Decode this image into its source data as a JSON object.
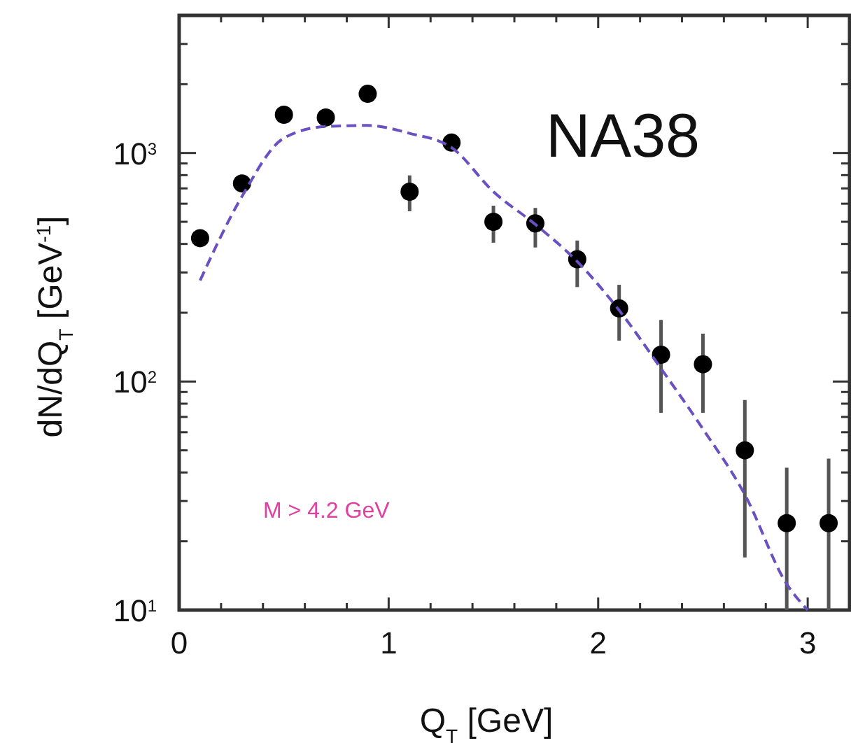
{
  "chart_data": {
    "type": "scatter",
    "xlabel": "Q$_{T}$ [GeV]",
    "ylabel": "dN/dQ$_{T}$ [GeV$^{-1}$]",
    "annotations": [
      "NA38",
      "M > 4.2 GeV"
    ],
    "log": "y",
    "grid": false,
    "xlim": [
      0,
      3.2
    ],
    "ylim": [
      10,
      4000
    ],
    "xticks": [
      0,
      {
        "value": 0.2,
        "label": null
      },
      {
        "value": 0.4,
        "label": null
      },
      {
        "value": 0.6,
        "label": null
      },
      {
        "value": 0.8,
        "label": null
      },
      1,
      {
        "value": 1.2,
        "label": null
      },
      {
        "value": 1.4,
        "label": null
      },
      {
        "value": 1.6,
        "label": null
      },
      {
        "value": 1.8,
        "label": null
      },
      2,
      {
        "value": 2.2,
        "label": null
      },
      {
        "value": 2.4,
        "label": null
      },
      {
        "value": 2.6,
        "label": null
      },
      {
        "value": 2.8,
        "label": null
      },
      3
    ],
    "yticks": [
      {
        "value": 10,
        "label": "10$^{1}$"
      },
      {
        "value": 20,
        "label": null
      },
      {
        "value": 30,
        "label": null
      },
      {
        "value": 40,
        "label": null
      },
      {
        "value": 50,
        "label": null
      },
      {
        "value": 60,
        "label": null
      },
      {
        "value": 70,
        "label": null
      },
      {
        "value": 80,
        "label": null
      },
      {
        "value": 90,
        "label": null
      },
      {
        "value": 100,
        "label": "10$^{2}$"
      },
      {
        "value": 200,
        "label": null
      },
      {
        "value": 300,
        "label": null
      },
      {
        "value": 400,
        "label": null
      },
      {
        "value": 500,
        "label": null
      },
      {
        "value": 600,
        "label": null
      },
      {
        "value": 700,
        "label": null
      },
      {
        "value": 800,
        "label": null
      },
      {
        "value": 900,
        "label": null
      },
      {
        "value": 1000,
        "label": "10$^{3}$"
      },
      {
        "value": 2000,
        "label": null
      },
      {
        "value": 3000,
        "label": null
      }
    ],
    "series": [
      {
        "type": "scatter",
        "color": "#000000",
        "marker": "circle",
        "x": [
          0.1,
          0.3,
          0.5,
          0.7,
          0.9,
          1.1,
          1.3,
          1.5,
          1.7,
          1.9,
          2.1,
          2.3,
          2.5,
          2.7,
          2.9,
          3.1
        ],
        "values": [
          424,
          736,
          1470,
          1430,
          1815,
          677,
          1110,
          500,
          492,
          343,
          209,
          131,
          119,
          50,
          24,
          24
        ],
        "errors": [
          null,
          null,
          null,
          null,
          null,
          [
            556,
            798
          ],
          null,
          [
            405,
            588
          ],
          [
            386,
            575
          ],
          [
            259,
            414
          ],
          [
            151,
            265
          ],
          [
            73,
            186
          ],
          [
            73,
            162
          ],
          [
            17,
            83
          ],
          [
            10,
            42
          ],
          [
            10,
            46
          ]
        ]
      },
      {
        "type": "line",
        "color": "#6a50c0",
        "line_style": "dashed",
        "marker": "none",
        "x": [
          0.1,
          0.3,
          0.5,
          0.7,
          0.9,
          1.1,
          1.3,
          1.5,
          1.7,
          1.9,
          2.1,
          2.3,
          2.5,
          2.7,
          2.9,
          3.0
        ],
        "values": [
          277,
          646,
          1162,
          1306,
          1320,
          1219,
          1057,
          677,
          487,
          335,
          205,
          114,
          62,
          32,
          13,
          10
        ]
      }
    ]
  }
}
